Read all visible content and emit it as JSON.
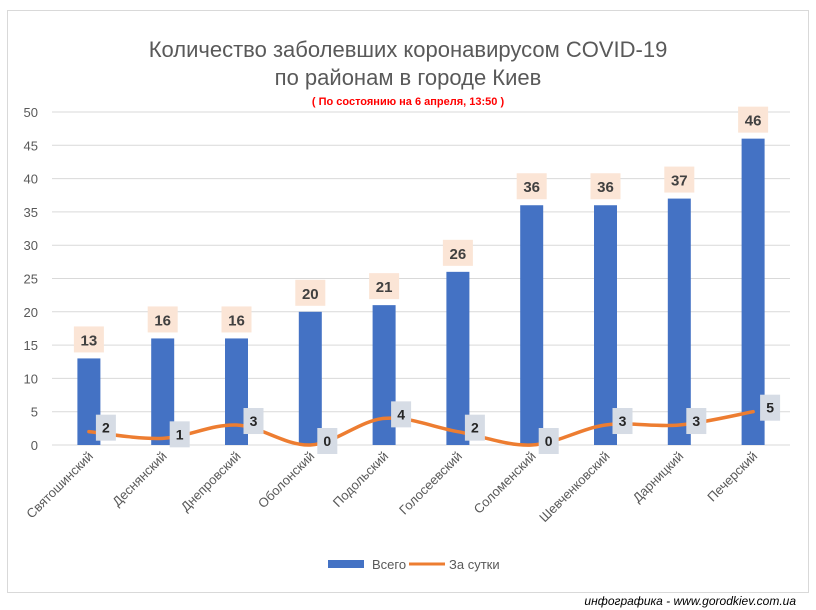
{
  "title_line1": "Количество заболевших коронавирусом COVID-19",
  "title_line2": "по районам в городе Киев",
  "subtitle": "( По состоянию на 6 апреля, 13:50 )",
  "credit": "инфографика - www.gorodkiev.com.ua",
  "colors": {
    "bars": "#4472c4",
    "line": "#ed7d31",
    "bar_label_bg": "#fbe5d6",
    "line_label_bg": "#d6dce5",
    "grid": "#d9d9d9"
  },
  "chart_data": {
    "type": "bar",
    "categories": [
      "Святошинский",
      "Деснянский",
      "Днепровский",
      "Оболонский",
      "Подольский",
      "Голосеевский",
      "Соломенский",
      "Шевченковский",
      "Дарницкий",
      "Печерский"
    ],
    "series": [
      {
        "name": "Всего",
        "type": "bar",
        "values": [
          13,
          16,
          16,
          20,
          21,
          26,
          36,
          36,
          37,
          46
        ]
      },
      {
        "name": "За сутки",
        "type": "line",
        "values": [
          2,
          1,
          3,
          0,
          4,
          2,
          0,
          3,
          3,
          5
        ]
      }
    ],
    "ylim": [
      0,
      50
    ],
    "yticks": [
      0,
      5,
      10,
      15,
      20,
      25,
      30,
      35,
      40,
      45,
      50
    ],
    "grid": true,
    "legend": "bottom"
  }
}
